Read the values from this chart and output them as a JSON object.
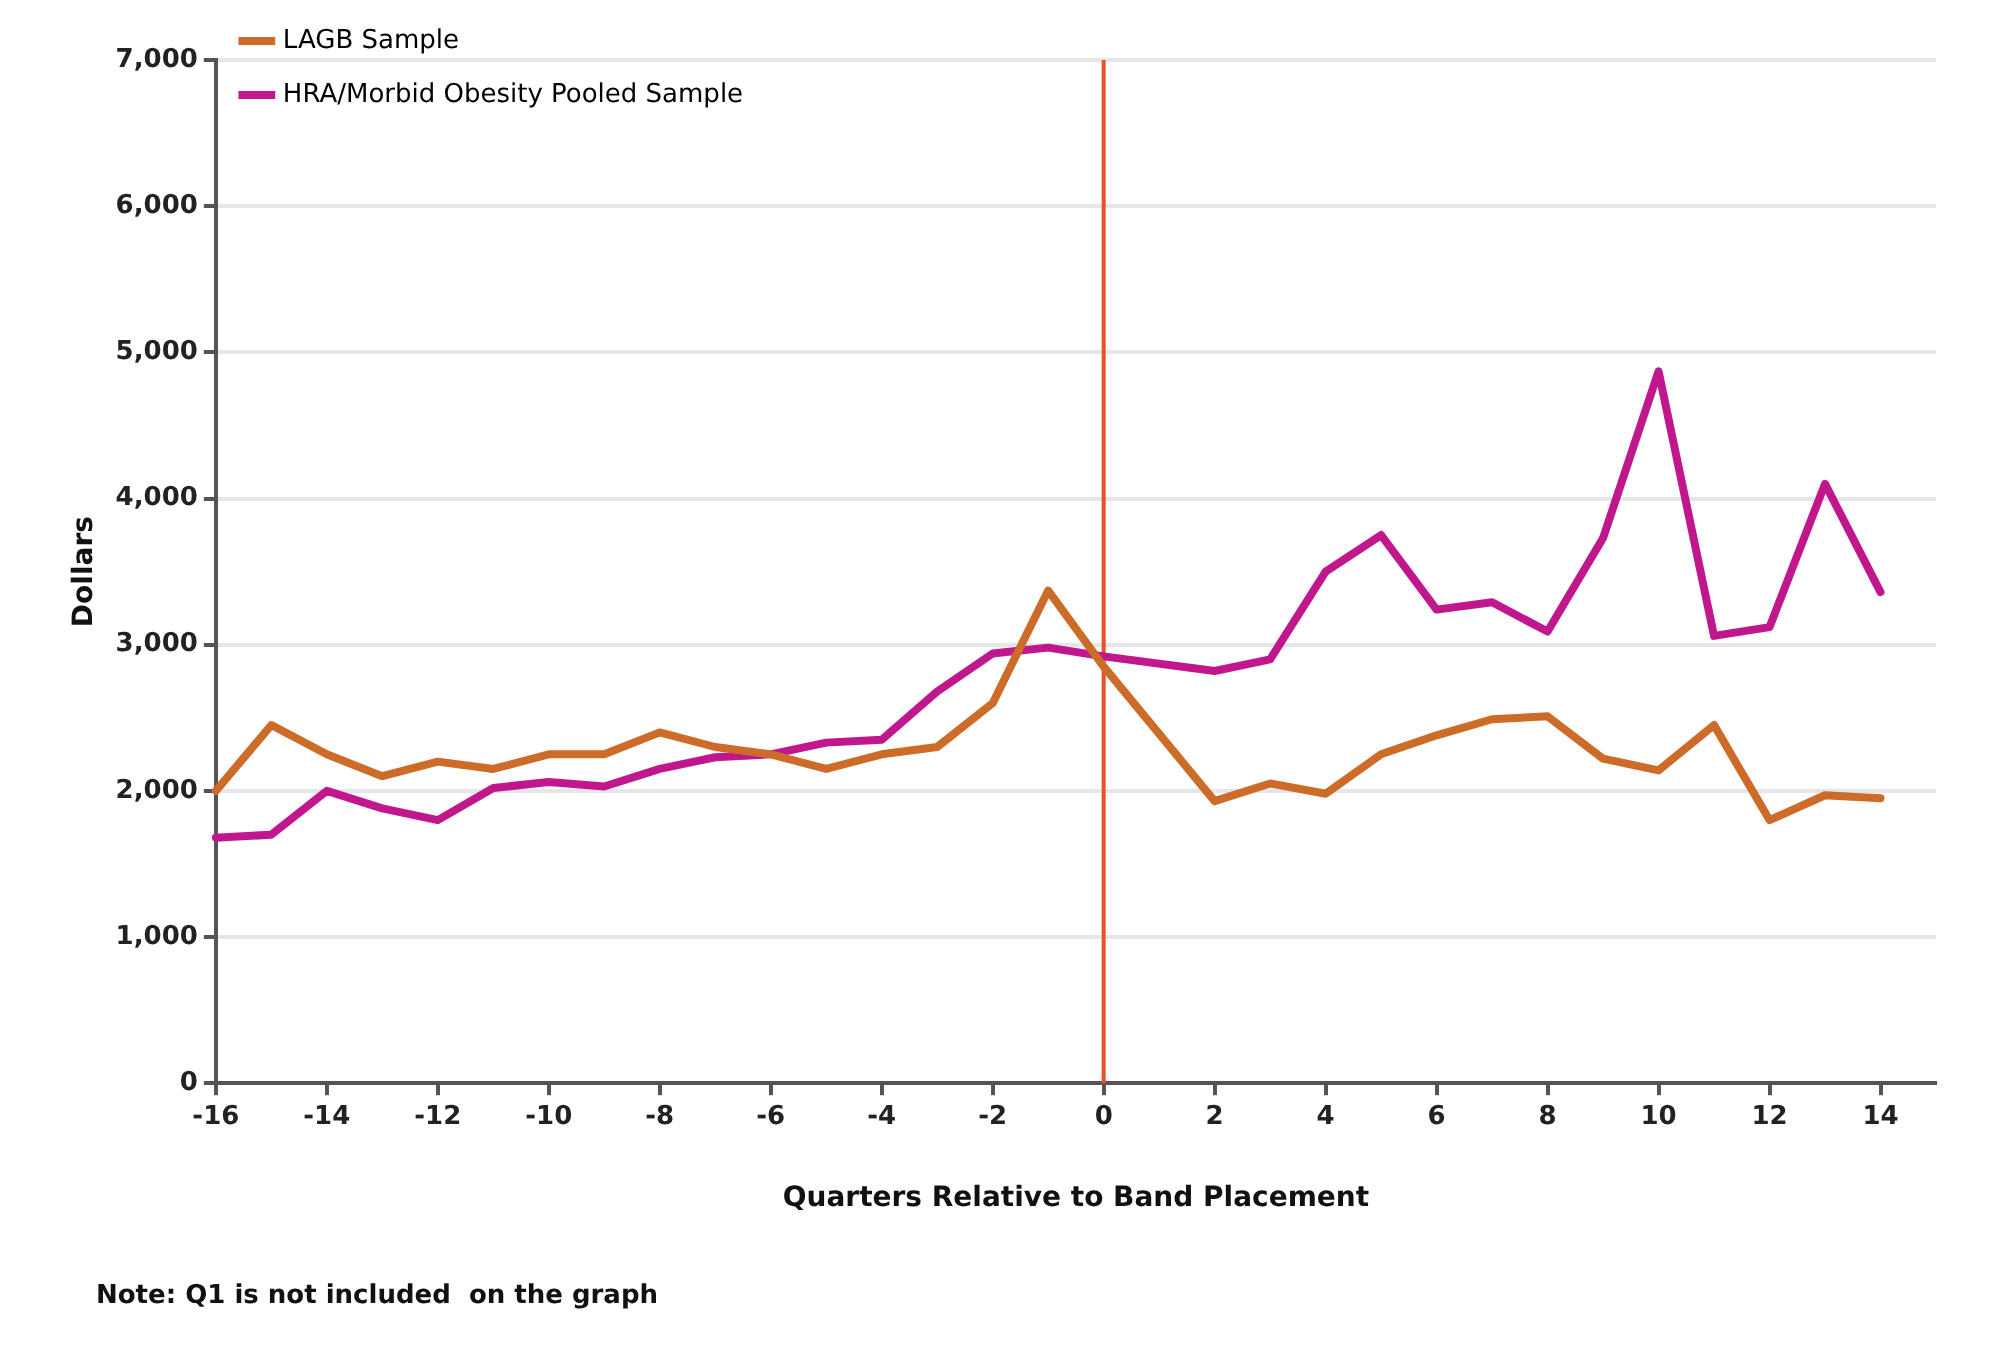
{
  "chart_data": {
    "type": "line",
    "xlabel": "Quarters Relative to Band Placement",
    "ylabel": "Dollars",
    "x": [
      -16,
      -15,
      -14,
      -13,
      -12,
      -11,
      -10,
      -9,
      -8,
      -7,
      -6,
      -5,
      -4,
      -3,
      -2,
      -1,
      0,
      2,
      3,
      4,
      5,
      6,
      7,
      8,
      9,
      10,
      11,
      12,
      13,
      14
    ],
    "series": [
      {
        "name": "LAGB Sample",
        "color": "#cd6b28",
        "values": [
          2000,
          2450,
          2250,
          2100,
          2200,
          2150,
          2250,
          2250,
          2400,
          2300,
          2250,
          2150,
          2250,
          2300,
          2600,
          3370,
          2850,
          1930,
          2050,
          1980,
          2250,
          2380,
          2490,
          2510,
          2220,
          2140,
          2450,
          1800,
          1970,
          1950
        ]
      },
      {
        "name": "HRA/Morbid Obesity Pooled Sample",
        "color": "#c0188c",
        "values": [
          1680,
          1700,
          2000,
          1880,
          1800,
          2020,
          2060,
          2030,
          2150,
          2230,
          2250,
          2330,
          2350,
          2680,
          2940,
          2980,
          2920,
          2820,
          2900,
          3500,
          3750,
          3240,
          3290,
          3090,
          3730,
          4870,
          3060,
          3120,
          4100,
          3360
        ]
      }
    ],
    "xlim": [
      -16,
      15
    ],
    "xticks": [
      -16,
      -14,
      -12,
      -10,
      -8,
      -6,
      -4,
      -2,
      0,
      2,
      4,
      6,
      8,
      10,
      12,
      14
    ],
    "ylim": [
      0,
      7000
    ],
    "yticks": [
      {
        "value": 0,
        "label": "0"
      },
      {
        "value": 1000,
        "label": "1,000"
      },
      {
        "value": 2000,
        "label": "2,000"
      },
      {
        "value": 3000,
        "label": "3,000"
      },
      {
        "value": 4000,
        "label": "4,000"
      },
      {
        "value": 5000,
        "label": "5,000"
      },
      {
        "value": 6000,
        "label": "6,000"
      },
      {
        "value": 7000,
        "label": "7,000"
      }
    ],
    "ref_lines": [
      {
        "axis": "x",
        "value": 0,
        "color": "#e8502a"
      }
    ],
    "annotations": [
      "Note: Q1 is not included  on the graph"
    ],
    "grid": "y",
    "legend": "top left",
    "marker": "none",
    "line_style": "solid"
  }
}
